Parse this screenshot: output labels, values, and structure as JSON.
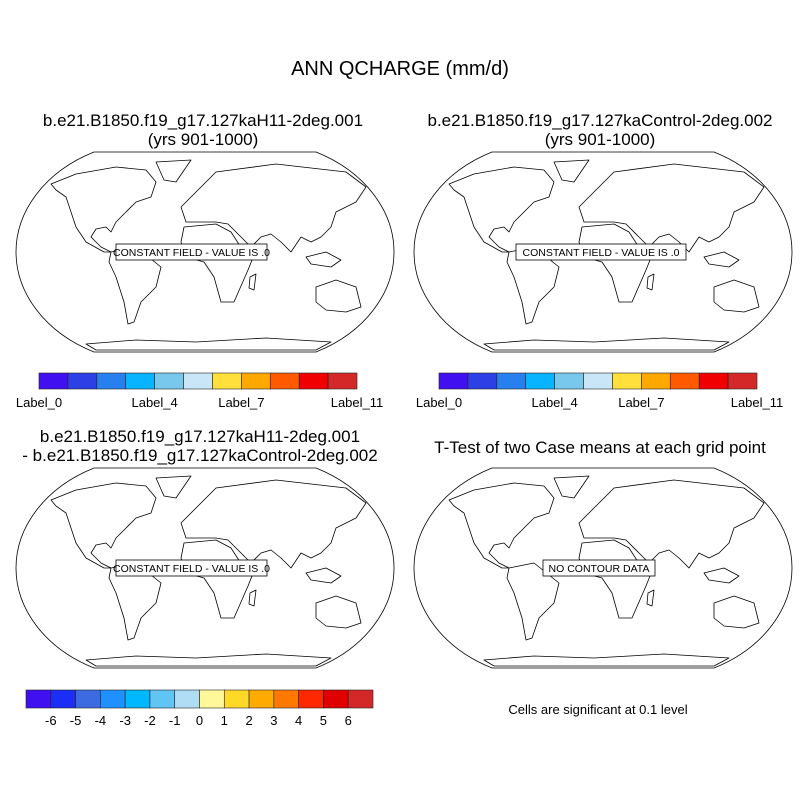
{
  "title": "ANN QCHARGE (mm/d)",
  "panels": [
    {
      "title_line1": "b.e21.B1850.f19_g17.127kaH11-2deg.001",
      "title_line2": "(yrs 901-1000)",
      "message": "CONSTANT FIELD - VALUE IS .0"
    },
    {
      "title_line1": "b.e21.B1850.f19_g17.127kaControl-2deg.002",
      "title_line2": "(yrs 901-1000)",
      "message": "CONSTANT FIELD - VALUE IS .0"
    },
    {
      "title_line1": "b.e21.B1850.f19_g17.127kaH11-2deg.001",
      "title_line2": "- b.e21.B1850.f19_g17.127kaControl-2deg.002",
      "message": "CONSTANT FIELD - VALUE IS .0"
    },
    {
      "title_line1": "T-Test of two Case means at each grid point",
      "message": "NO CONTOUR DATA",
      "footnote": "Cells are significant at 0.1 level"
    }
  ],
  "chart_data": [
    {
      "type": "colorbar",
      "panel": 1,
      "colors": [
        "#4010f0",
        "#2c40e6",
        "#2880ee",
        "#08b4ff",
        "#78c8ee",
        "#c8e6f8",
        "#ffe03a",
        "#ffa800",
        "#ff5a00",
        "#f00000",
        "#d42828"
      ],
      "labels": [
        {
          "at": 0,
          "text": "Label_0"
        },
        {
          "at": 4,
          "text": "Label_4"
        },
        {
          "at": 7,
          "text": "Label_7"
        },
        {
          "at": 11,
          "text": "Label_11"
        }
      ]
    },
    {
      "type": "colorbar",
      "panel": 2,
      "colors": [
        "#4010f0",
        "#2c40e6",
        "#2880ee",
        "#08b4ff",
        "#78c8ee",
        "#c8e6f8",
        "#ffe03a",
        "#ffa800",
        "#ff5a00",
        "#f00000",
        "#d42828"
      ],
      "labels": [
        {
          "at": 0,
          "text": "Label_0"
        },
        {
          "at": 4,
          "text": "Label_4"
        },
        {
          "at": 7,
          "text": "Label_7"
        },
        {
          "at": 11,
          "text": "Label_11"
        }
      ]
    },
    {
      "type": "colorbar",
      "panel": 3,
      "colors": [
        "#4010f0",
        "#1a2ef5",
        "#3c6ae0",
        "#1e90ff",
        "#00b8ff",
        "#60c4f4",
        "#b0dcf4",
        "#fff89a",
        "#ffd828",
        "#ffaa00",
        "#ff7800",
        "#ff2800",
        "#e00000",
        "#d42828"
      ],
      "labels": [
        {
          "at": 1,
          "text": "-6"
        },
        {
          "at": 2,
          "text": "-5"
        },
        {
          "at": 3,
          "text": "-4"
        },
        {
          "at": 4,
          "text": "-3"
        },
        {
          "at": 5,
          "text": "-2"
        },
        {
          "at": 6,
          "text": "-1"
        },
        {
          "at": 7,
          "text": "0"
        },
        {
          "at": 8,
          "text": "1"
        },
        {
          "at": 9,
          "text": "2"
        },
        {
          "at": 10,
          "text": "3"
        },
        {
          "at": 11,
          "text": "4"
        },
        {
          "at": 12,
          "text": "5"
        },
        {
          "at": 13,
          "text": "6"
        }
      ]
    }
  ]
}
